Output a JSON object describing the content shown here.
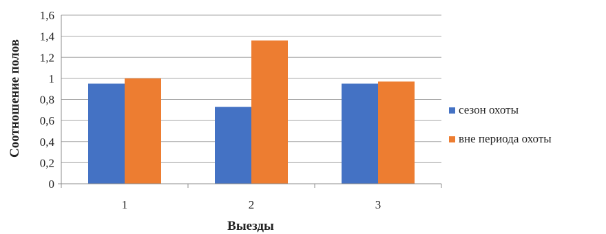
{
  "chart_data": {
    "type": "bar",
    "title": "",
    "xlabel": "Выезды",
    "ylabel": "Соотношение полов",
    "categories": [
      "1",
      "2",
      "3"
    ],
    "series": [
      {
        "name": "сезон охоты",
        "values": [
          0.95,
          0.73,
          0.95
        ],
        "color": "#4472C4"
      },
      {
        "name": "вне периода охоты",
        "values": [
          1.0,
          1.36,
          0.97
        ],
        "color": "#ED7D31"
      }
    ],
    "ylim": [
      0,
      1.6
    ],
    "yticks": [
      "0",
      "0,2",
      "0,4",
      "0,6",
      "0,8",
      "1",
      "1,2",
      "1,4",
      "1,6"
    ],
    "grid": true,
    "legend": "right"
  }
}
